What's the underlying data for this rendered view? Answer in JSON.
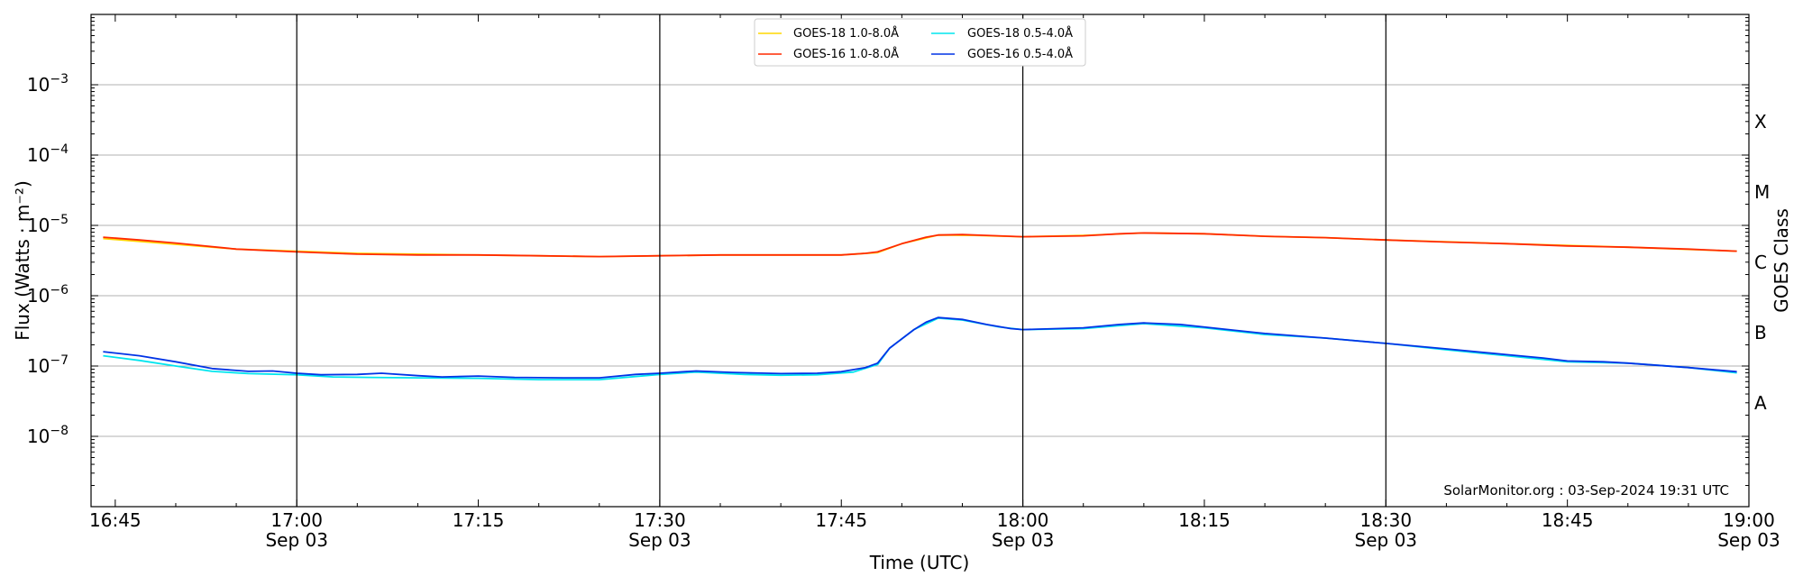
{
  "chart_data": {
    "type": "line",
    "xlabel": "Time (UTC)",
    "ylabel": "Flux (Watts · m⁻²)",
    "right_ylabel": "GOES Class",
    "yscale": "log",
    "ylim": [
      1e-09,
      0.01
    ],
    "xlim": [
      "2024-09-03T16:43",
      "2024-09-03T19:00"
    ],
    "grid": "horizontal",
    "legend_position": "top-center",
    "credit": "SolarMonitor.org : 03-Sep-2024 19:31 UTC",
    "x_ticks": [
      {
        "time": "16:45",
        "label": "16:45",
        "date": ""
      },
      {
        "time": "17:00",
        "label": "17:00",
        "date": "Sep 03"
      },
      {
        "time": "17:15",
        "label": "17:15",
        "date": ""
      },
      {
        "time": "17:30",
        "label": "17:30",
        "date": "Sep 03"
      },
      {
        "time": "17:45",
        "label": "17:45",
        "date": ""
      },
      {
        "time": "18:00",
        "label": "18:00",
        "date": "Sep 03"
      },
      {
        "time": "18:15",
        "label": "18:15",
        "date": ""
      },
      {
        "time": "18:30",
        "label": "18:30",
        "date": "Sep 03"
      },
      {
        "time": "18:45",
        "label": "18:45",
        "date": ""
      },
      {
        "time": "19:00",
        "label": "19:00",
        "date": "Sep 03"
      }
    ],
    "y_ticks": [
      {
        "exp": -8,
        "label": "10"
      },
      {
        "exp": -7,
        "label": "10"
      },
      {
        "exp": -6,
        "label": "10"
      },
      {
        "exp": -5,
        "label": "10"
      },
      {
        "exp": -4,
        "label": "10"
      },
      {
        "exp": -3,
        "label": "10"
      }
    ],
    "vertical_lines": [
      "17:00",
      "17:30",
      "18:00",
      "18:30"
    ],
    "goes_classes": [
      {
        "label": "A",
        "value": 3e-08
      },
      {
        "label": "B",
        "value": 3e-07
      },
      {
        "label": "C",
        "value": 3e-06
      },
      {
        "label": "M",
        "value": 3e-05
      },
      {
        "label": "X",
        "value": 0.0003
      }
    ],
    "series": [
      {
        "name": "GOES-18 1.0-8.0Å",
        "color": "#ffd700",
        "points": [
          [
            "16:44",
            6.5e-06
          ],
          [
            "16:55",
            4.6e-06
          ],
          [
            "17:05",
            4e-06
          ],
          [
            "17:15",
            3.8e-06
          ],
          [
            "17:25",
            3.6e-06
          ],
          [
            "17:35",
            3.8e-06
          ],
          [
            "17:45",
            3.8e-06
          ],
          [
            "17:48",
            4.1e-06
          ],
          [
            "17:50",
            5.5e-06
          ],
          [
            "17:53",
            7.3e-06
          ],
          [
            "17:56",
            7.2e-06
          ],
          [
            "18:00",
            6.9e-06
          ],
          [
            "18:05",
            7.2e-06
          ],
          [
            "18:10",
            7.8e-06
          ],
          [
            "18:15",
            7.6e-06
          ],
          [
            "18:20",
            7e-06
          ],
          [
            "18:25",
            6.7e-06
          ],
          [
            "18:30",
            6.2e-06
          ],
          [
            "18:40",
            5.5e-06
          ],
          [
            "18:50",
            4.9e-06
          ],
          [
            "18:59",
            4.3e-06
          ]
        ]
      },
      {
        "name": "GOES-16 1.0-8.0Å",
        "color": "#ff2a00",
        "points": [
          [
            "16:44",
            6.8e-06
          ],
          [
            "16:47",
            6.2e-06
          ],
          [
            "16:50",
            5.6e-06
          ],
          [
            "16:55",
            4.6e-06
          ],
          [
            "17:00",
            4.2e-06
          ],
          [
            "17:05",
            3.9e-06
          ],
          [
            "17:10",
            3.8e-06
          ],
          [
            "17:15",
            3.8e-06
          ],
          [
            "17:20",
            3.7e-06
          ],
          [
            "17:25",
            3.6e-06
          ],
          [
            "17:30",
            3.7e-06
          ],
          [
            "17:35",
            3.8e-06
          ],
          [
            "17:40",
            3.8e-06
          ],
          [
            "17:45",
            3.8e-06
          ],
          [
            "17:47",
            4e-06
          ],
          [
            "17:48",
            4.2e-06
          ],
          [
            "17:50",
            5.5e-06
          ],
          [
            "17:52",
            6.8e-06
          ],
          [
            "17:53",
            7.3e-06
          ],
          [
            "17:55",
            7.4e-06
          ],
          [
            "17:57",
            7.2e-06
          ],
          [
            "18:00",
            6.9e-06
          ],
          [
            "18:05",
            7.1e-06
          ],
          [
            "18:08",
            7.6e-06
          ],
          [
            "18:10",
            7.8e-06
          ],
          [
            "18:15",
            7.6e-06
          ],
          [
            "18:20",
            7e-06
          ],
          [
            "18:25",
            6.7e-06
          ],
          [
            "18:30",
            6.2e-06
          ],
          [
            "18:35",
            5.8e-06
          ],
          [
            "18:40",
            5.5e-06
          ],
          [
            "18:45",
            5.1e-06
          ],
          [
            "18:50",
            4.9e-06
          ],
          [
            "18:55",
            4.6e-06
          ],
          [
            "18:59",
            4.3e-06
          ]
        ]
      },
      {
        "name": "GOES-18 0.5-4.0Å",
        "color": "#00e5ee",
        "points": [
          [
            "16:44",
            1.4e-07
          ],
          [
            "16:47",
            1.2e-07
          ],
          [
            "16:50",
            1e-07
          ],
          [
            "16:53",
            8.4e-08
          ],
          [
            "16:56",
            7.8e-08
          ],
          [
            "17:00",
            7.5e-08
          ],
          [
            "17:03",
            7e-08
          ],
          [
            "17:06",
            6.9e-08
          ],
          [
            "17:10",
            6.8e-08
          ],
          [
            "17:15",
            6.7e-08
          ],
          [
            "17:20",
            6.4e-08
          ],
          [
            "17:25",
            6.4e-08
          ],
          [
            "17:30",
            7.6e-08
          ],
          [
            "17:33",
            8.2e-08
          ],
          [
            "17:37",
            7.6e-08
          ],
          [
            "17:40",
            7.4e-08
          ],
          [
            "17:43",
            7.5e-08
          ],
          [
            "17:46",
            8.2e-08
          ],
          [
            "17:48",
            1.05e-07
          ],
          [
            "17:49",
            1.8e-07
          ],
          [
            "17:51",
            3.3e-07
          ],
          [
            "17:53",
            4.8e-07
          ],
          [
            "17:55",
            4.5e-07
          ],
          [
            "17:58",
            3.6e-07
          ],
          [
            "18:00",
            3.3e-07
          ],
          [
            "18:05",
            3.4e-07
          ],
          [
            "18:10",
            4e-07
          ],
          [
            "18:15",
            3.5e-07
          ],
          [
            "18:20",
            2.8e-07
          ],
          [
            "18:25",
            2.5e-07
          ],
          [
            "18:30",
            2.1e-07
          ],
          [
            "18:35",
            1.7e-07
          ],
          [
            "18:40",
            1.4e-07
          ],
          [
            "18:45",
            1.15e-07
          ],
          [
            "18:50",
            1.1e-07
          ],
          [
            "18:55",
            9.5e-08
          ],
          [
            "18:59",
            8e-08
          ]
        ]
      },
      {
        "name": "GOES-16 0.5-4.0Å",
        "color": "#0033e6",
        "points": [
          [
            "16:44",
            1.6e-07
          ],
          [
            "16:47",
            1.4e-07
          ],
          [
            "16:50",
            1.15e-07
          ],
          [
            "16:53",
            9.2e-08
          ],
          [
            "16:56",
            8.4e-08
          ],
          [
            "16:58",
            8.5e-08
          ],
          [
            "17:00",
            7.9e-08
          ],
          [
            "17:02",
            7.5e-08
          ],
          [
            "17:05",
            7.6e-08
          ],
          [
            "17:07",
            7.9e-08
          ],
          [
            "17:10",
            7.3e-08
          ],
          [
            "17:12",
            7e-08
          ],
          [
            "17:15",
            7.2e-08
          ],
          [
            "17:18",
            6.9e-08
          ],
          [
            "17:22",
            6.8e-08
          ],
          [
            "17:25",
            6.8e-08
          ],
          [
            "17:28",
            7.6e-08
          ],
          [
            "17:30",
            7.9e-08
          ],
          [
            "17:33",
            8.5e-08
          ],
          [
            "17:36",
            8.1e-08
          ],
          [
            "17:40",
            7.8e-08
          ],
          [
            "17:43",
            7.9e-08
          ],
          [
            "17:45",
            8.3e-08
          ],
          [
            "17:47",
            9.5e-08
          ],
          [
            "17:48",
            1.1e-07
          ],
          [
            "17:49",
            1.8e-07
          ],
          [
            "17:51",
            3.3e-07
          ],
          [
            "17:52",
            4.2e-07
          ],
          [
            "17:53",
            4.9e-07
          ],
          [
            "17:55",
            4.6e-07
          ],
          [
            "17:57",
            3.9e-07
          ],
          [
            "17:59",
            3.4e-07
          ],
          [
            "18:00",
            3.3e-07
          ],
          [
            "18:05",
            3.5e-07
          ],
          [
            "18:08",
            3.9e-07
          ],
          [
            "18:10",
            4.1e-07
          ],
          [
            "18:13",
            3.9e-07
          ],
          [
            "18:17",
            3.3e-07
          ],
          [
            "18:20",
            2.9e-07
          ],
          [
            "18:25",
            2.5e-07
          ],
          [
            "18:30",
            2.1e-07
          ],
          [
            "18:35",
            1.75e-07
          ],
          [
            "18:40",
            1.45e-07
          ],
          [
            "18:43",
            1.3e-07
          ],
          [
            "18:45",
            1.18e-07
          ],
          [
            "18:48",
            1.15e-07
          ],
          [
            "18:50",
            1.1e-07
          ],
          [
            "18:55",
            9.5e-08
          ],
          [
            "18:59",
            8.3e-08
          ]
        ]
      }
    ]
  }
}
